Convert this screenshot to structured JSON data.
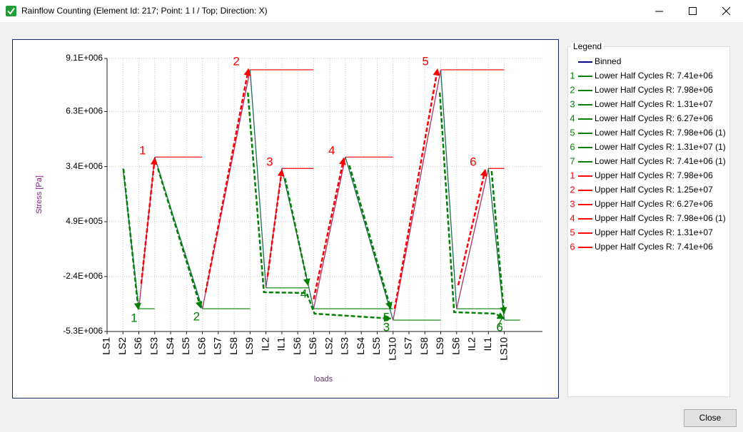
{
  "window": {
    "title": "Rainflow Counting (Element Id: 217; Point: 1 I / Top; Direction: X)"
  },
  "chart_data": {
    "type": "line",
    "y_label": "Stress [Pa]",
    "x_label": "loads",
    "categories": [
      "LS1",
      "LS2",
      "LS6",
      "LS3",
      "LS4",
      "LS5",
      "LS6",
      "LS7",
      "LS8",
      "LS9",
      "IL2",
      "IL1",
      "LS6",
      "LS6",
      "LS2",
      "LS3",
      "LS4",
      "LS5",
      "LS10",
      "LS7",
      "LS8",
      "LS9",
      "LS6",
      "IL2",
      "IL1",
      "LS10"
    ],
    "xlim": [
      0,
      27.4
    ],
    "ylim": [
      -5300000,
      9100000
    ],
    "yticks": [
      {
        "value": 9100000,
        "label": "9.1E+006"
      },
      {
        "value": 6300000,
        "label": "6.3E+006"
      },
      {
        "value": 3400000,
        "label": "3.4E+006"
      },
      {
        "value": 490000,
        "label": "4.9E+005"
      },
      {
        "value": -2400000,
        "label": "-2.4E+006"
      },
      {
        "value": -5300000,
        "label": "-5.3E+006"
      }
    ],
    "grid": true,
    "series": [
      {
        "rise_color": "#b0306a",
        "fall_color": "#1f6b5a",
        "values": [
          null,
          3300000,
          -4100000,
          3900000,
          1230000,
          -1430000,
          -4100000,
          100000,
          4300000,
          8500000,
          -3000000,
          3300000,
          -400000,
          -4100000,
          -100000,
          3900000,
          1030000,
          -1830000,
          -4700000,
          -300000,
          4100000,
          8500000,
          -4100000,
          -400000,
          3300000,
          -4700000
        ]
      }
    ],
    "upper_color": "#ff0000",
    "lower_color": "#008000",
    "upper_levels": [
      [
        3,
        6,
        3900000
      ],
      [
        9,
        13,
        8500000
      ],
      [
        11,
        13,
        3300000
      ],
      [
        15,
        18,
        3900000
      ],
      [
        21,
        25,
        8500000
      ],
      [
        24,
        25,
        3300000
      ]
    ],
    "lower_levels": [
      [
        2,
        3,
        -4100000
      ],
      [
        6,
        9,
        -4100000
      ],
      [
        10,
        12.7,
        -3000000
      ],
      [
        13,
        18,
        -4100000
      ],
      [
        18,
        21,
        -4700000
      ],
      [
        22,
        25,
        -4100000
      ],
      [
        25,
        26,
        -4700000
      ]
    ],
    "upper_half_cycles": [
      {
        "label": "1",
        "points": [
          [
            2.15,
            -2780000
          ],
          [
            3.0,
            3840000
          ]
        ]
      },
      {
        "label": "2",
        "points": [
          [
            6.2,
            -3230000
          ],
          [
            8.9,
            8540000
          ]
        ]
      },
      {
        "label": "3",
        "points": [
          [
            10.1,
            -2400000
          ],
          [
            11.0,
            3230000
          ]
        ]
      },
      {
        "label": "4",
        "points": [
          [
            13,
            -3600000
          ],
          [
            14.9,
            3840000
          ]
        ]
      },
      {
        "label": "5",
        "points": [
          [
            18.1,
            -4100000
          ],
          [
            20.8,
            8540000
          ]
        ]
      },
      {
        "label": "6",
        "points": [
          [
            22.1,
            -2860000
          ],
          [
            23.8,
            3230000
          ]
        ]
      }
    ],
    "lower_half_cycles": [
      {
        "label": "1",
        "points": [
          [
            1.03,
            3270000
          ],
          [
            1.97,
            -4140000
          ]
        ]
      },
      {
        "label": "2",
        "points": [
          [
            3.2,
            3300000
          ],
          [
            5.9,
            -4060000
          ]
        ]
      },
      {
        "label": "3",
        "points": [
          [
            8.86,
            7300000
          ],
          [
            9.87,
            -3230000
          ],
          [
            12.56,
            -3270000
          ],
          [
            13.05,
            -4360000
          ],
          [
            17.85,
            -4620000
          ]
        ]
      },
      {
        "label": "4",
        "points": [
          [
            11.2,
            2780000
          ],
          [
            12.65,
            -2860000
          ]
        ]
      },
      {
        "label": "5",
        "points": [
          [
            15.25,
            3460000
          ],
          [
            17.85,
            -4100000
          ]
        ]
      },
      {
        "label": "6",
        "points": [
          [
            20.94,
            7300000
          ],
          [
            21.84,
            -4280000
          ],
          [
            24.44,
            -4360000
          ],
          [
            24.98,
            -4620000
          ]
        ]
      },
      {
        "label": "7",
        "points": [
          [
            24.2,
            3160000
          ],
          [
            24.98,
            -4360000
          ]
        ]
      }
    ]
  },
  "legend": {
    "title": "Legend",
    "entries": [
      {
        "name": "Binned",
        "color": "#00008b"
      },
      {
        "number": "1",
        "name": "Lower Half Cycles R: 7.41e+06",
        "color": "#008000"
      },
      {
        "number": "2",
        "name": "Lower Half Cycles R: 7.98e+06",
        "color": "#008000"
      },
      {
        "number": "3",
        "name": "Lower Half Cycles R: 1.31e+07",
        "color": "#008000"
      },
      {
        "number": "4",
        "name": "Lower Half Cycles R: 6.27e+06",
        "color": "#008000"
      },
      {
        "number": "5",
        "name": "Lower Half Cycles R: 7.98e+06 (1)",
        "color": "#008000"
      },
      {
        "number": "6",
        "name": "Lower Half Cycles R: 1.31e+07 (1)",
        "color": "#008000"
      },
      {
        "number": "7",
        "name": "Lower Half Cycles R: 7.41e+06 (1)",
        "color": "#008000"
      },
      {
        "number": "1",
        "name": "Upper Half Cycles R: 7.98e+06",
        "color": "#ff0000"
      },
      {
        "number": "2",
        "name": "Upper Half Cycles R: 1.25e+07",
        "color": "#ff0000"
      },
      {
        "number": "3",
        "name": "Upper Half Cycles R: 6.27e+06",
        "color": "#ff0000"
      },
      {
        "number": "4",
        "name": "Upper Half Cycles R: 7.98e+06 (1)",
        "color": "#ff0000"
      },
      {
        "number": "5",
        "name": "Upper Half Cycles R: 1.31e+07",
        "color": "#ff0000"
      },
      {
        "number": "6",
        "name": "Upper Half Cycles R: 7.41e+06",
        "color": "#ff0000"
      }
    ]
  },
  "button": "Close"
}
